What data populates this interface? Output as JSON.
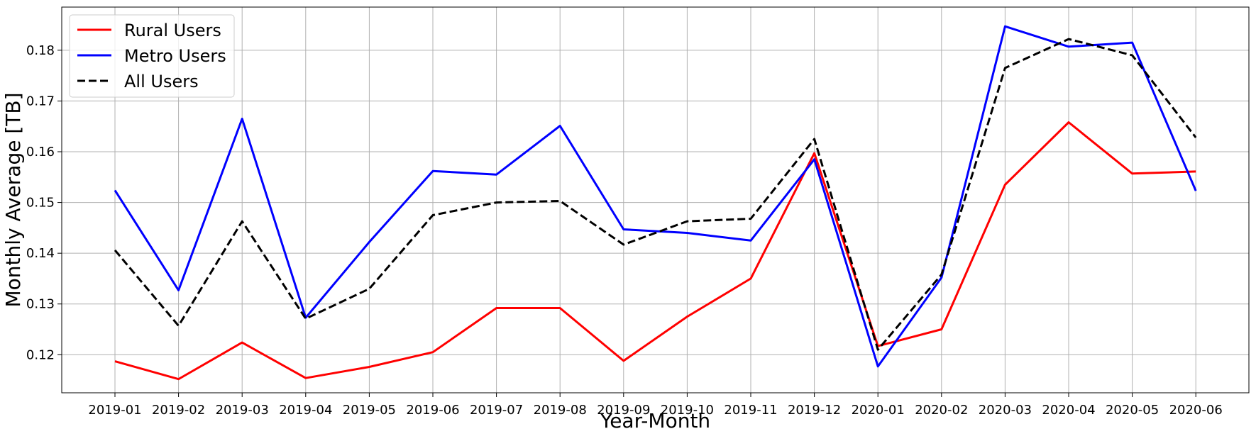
{
  "chart_data": {
    "type": "line",
    "title": "",
    "xlabel": "Year-Month",
    "ylabel": "Monthly Average [TB]",
    "categories": [
      "2019-01",
      "2019-02",
      "2019-03",
      "2019-04",
      "2019-05",
      "2019-06",
      "2019-07",
      "2019-08",
      "2019-09",
      "2019-10",
      "2019-11",
      "2019-12",
      "2020-01",
      "2020-02",
      "2020-03",
      "2020-04",
      "2020-05",
      "2020-06"
    ],
    "ylim": [
      0.1125,
      0.1885
    ],
    "yticks": [
      0.12,
      0.13,
      0.14,
      0.15,
      0.16,
      0.17,
      0.18
    ],
    "ytick_labels": [
      "0.12",
      "0.13",
      "0.14",
      "0.15",
      "0.16",
      "0.17",
      "0.18"
    ],
    "grid": true,
    "legend_position": "top-left",
    "series": [
      {
        "name": "Rural Users",
        "color": "#ff0000",
        "style": "solid",
        "values": [
          0.1187,
          0.1152,
          0.1224,
          0.1154,
          0.1176,
          0.1205,
          0.1292,
          0.1292,
          0.1188,
          0.1275,
          0.135,
          0.1597,
          0.1217,
          0.125,
          0.1535,
          0.1658,
          0.1557,
          0.1561
        ]
      },
      {
        "name": "Metro Users",
        "color": "#0000ff",
        "style": "solid",
        "values": [
          0.1524,
          0.1327,
          0.1665,
          0.1273,
          0.1422,
          0.1562,
          0.1555,
          0.1651,
          0.1447,
          0.144,
          0.1425,
          0.1585,
          0.1177,
          0.1352,
          0.1847,
          0.1807,
          0.1815,
          0.1523
        ]
      },
      {
        "name": "All Users",
        "color": "#000000",
        "style": "dashed",
        "values": [
          0.1406,
          0.1257,
          0.1463,
          0.1271,
          0.133,
          0.1475,
          0.15,
          0.1503,
          0.1417,
          0.1463,
          0.1468,
          0.1625,
          0.121,
          0.1358,
          0.1765,
          0.1822,
          0.179,
          0.1628
        ]
      }
    ]
  }
}
